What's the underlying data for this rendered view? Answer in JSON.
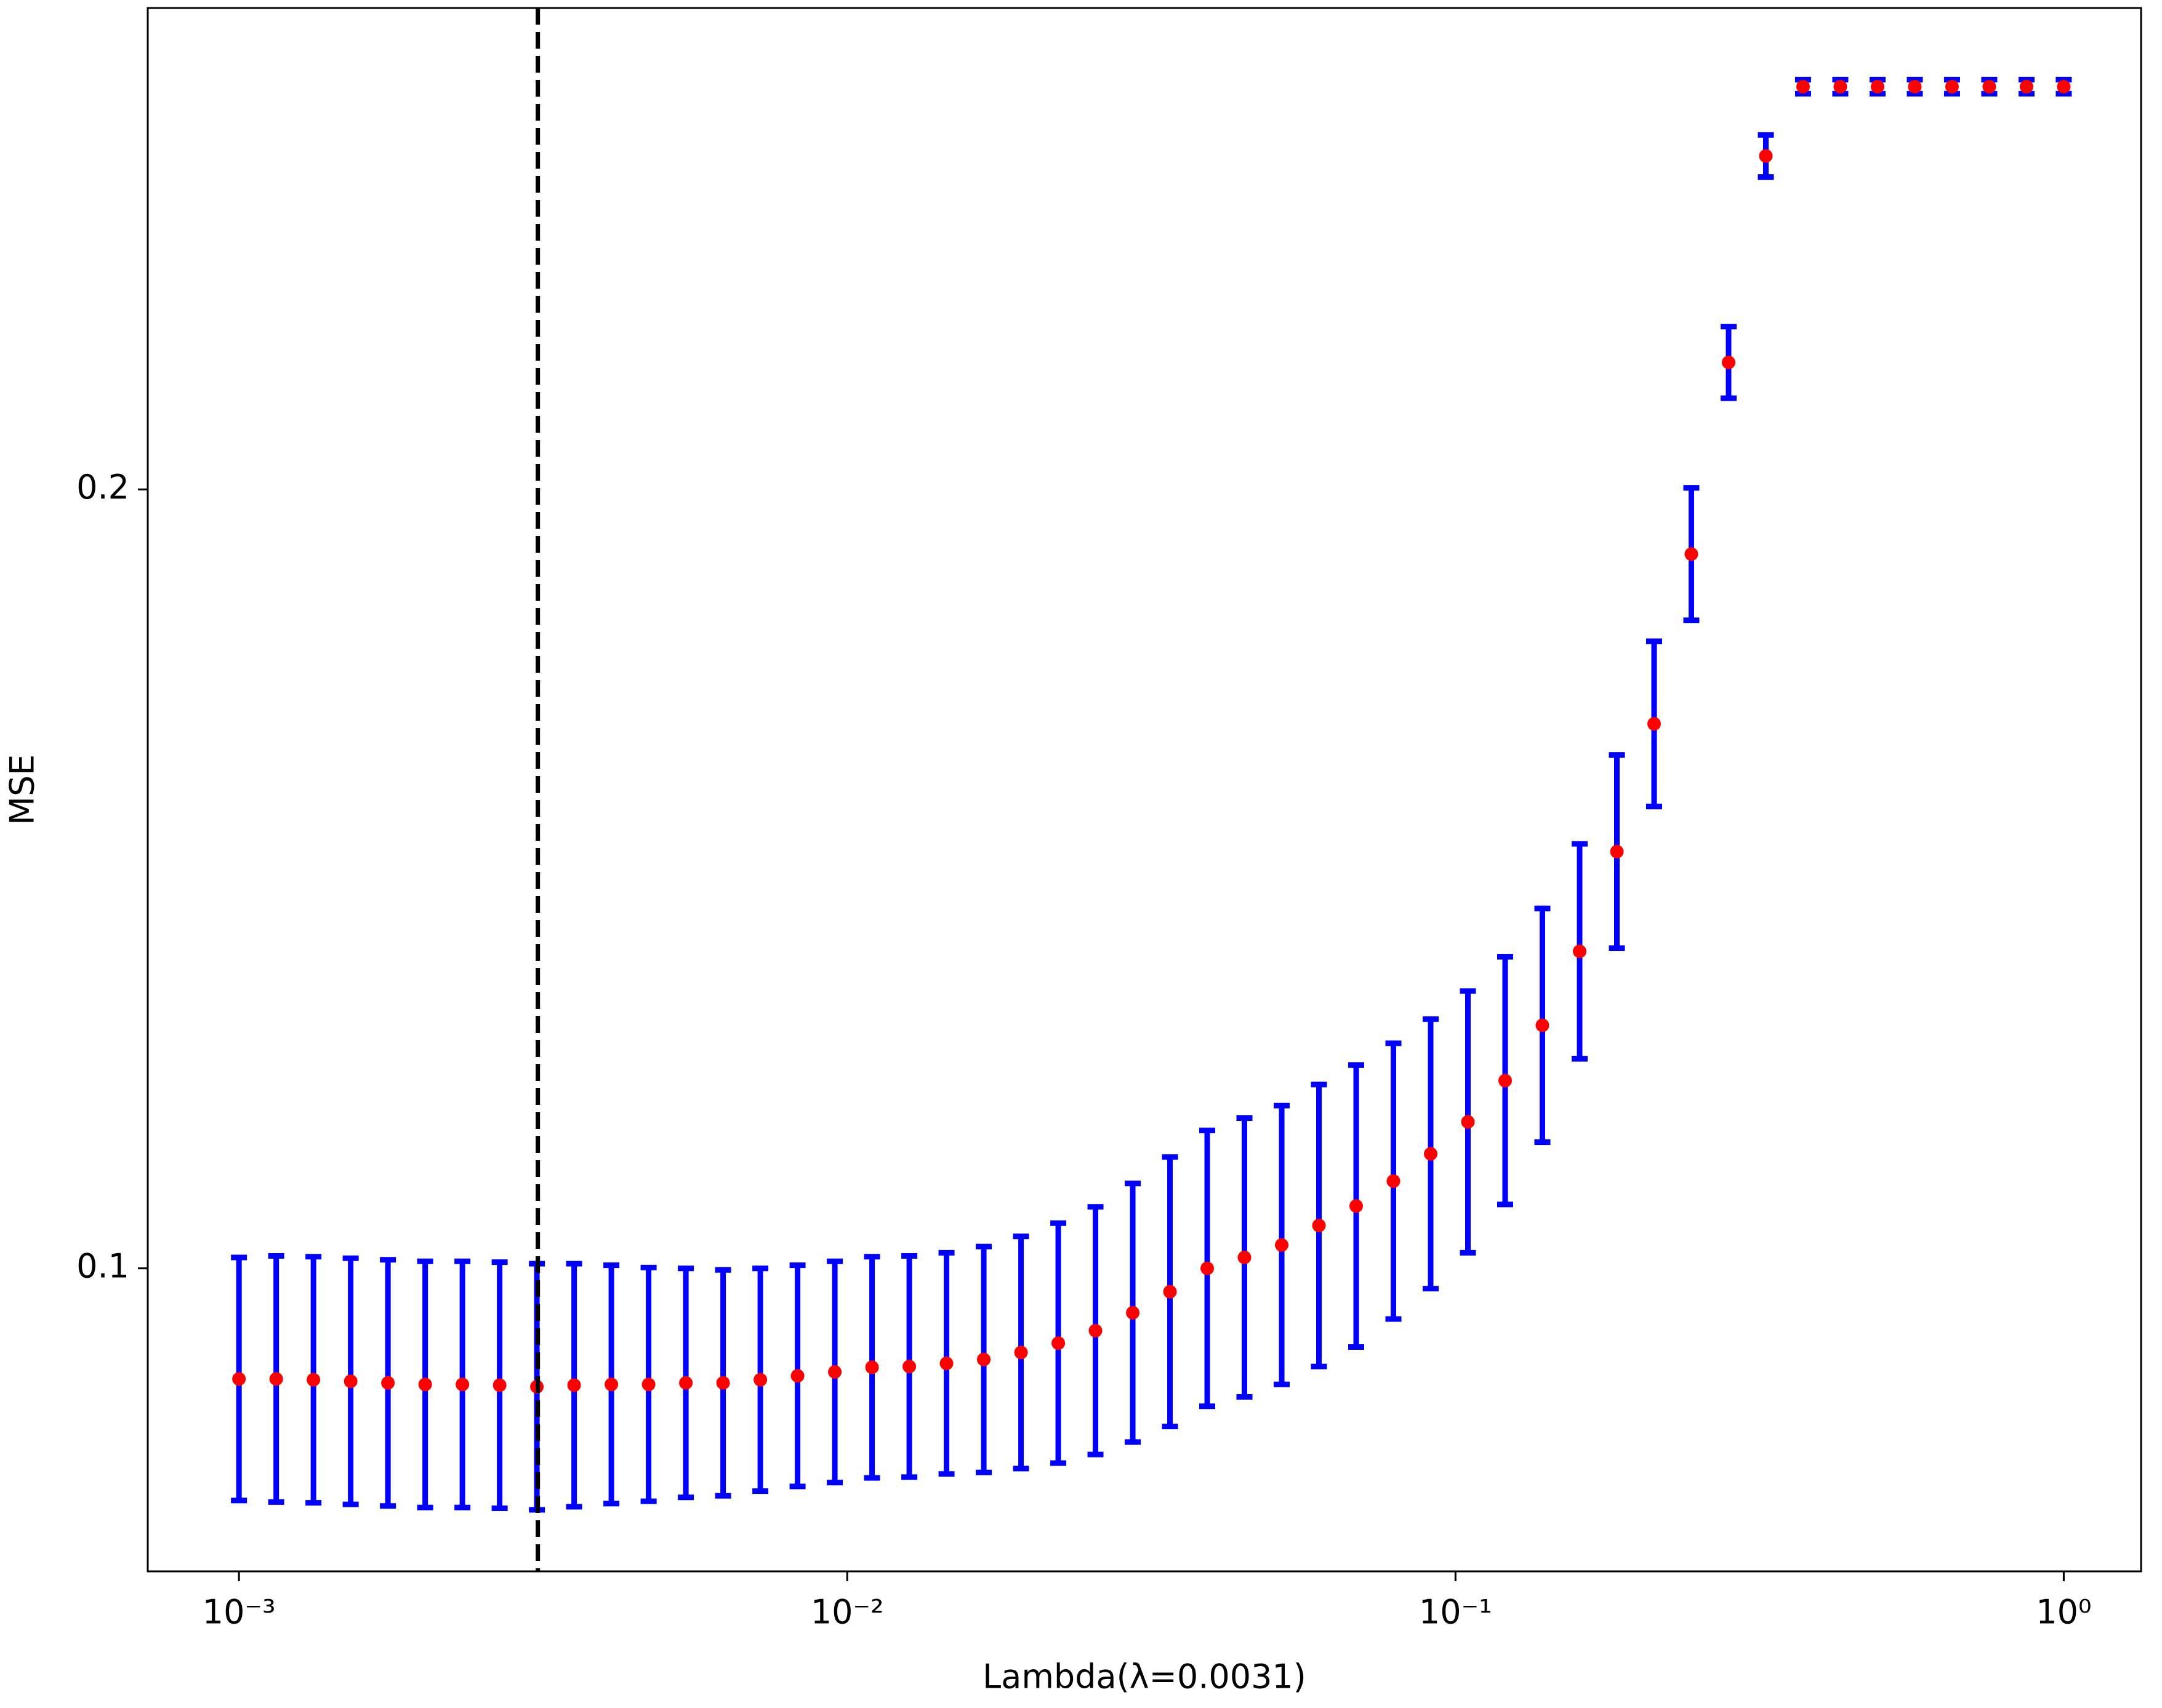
{
  "chart_data": {
    "type": "errorbar",
    "x_label": "Lambda(λ=0.0031)",
    "y_label": "MSE",
    "x": [
      0.001,
      0.0011514,
      0.0013257,
      0.0015264,
      0.0017575,
      0.0020236,
      0.00233,
      0.0026827,
      0.0030888,
      0.0035565,
      0.0040949,
      0.0047149,
      0.0054287,
      0.0062506,
      0.0071969,
      0.0082864,
      0.009541,
      0.010985,
      0.012649,
      0.014563,
      0.016768,
      0.019307,
      0.02223,
      0.025595,
      0.029471,
      0.033932,
      0.039069,
      0.044984,
      0.051795,
      0.059636,
      0.068665,
      0.07906,
      0.09103,
      0.10481,
      0.12068,
      0.13895,
      0.15999,
      0.18421,
      0.2121,
      0.24421,
      0.28118,
      0.32375,
      0.37276,
      0.42919,
      0.49417,
      0.56899,
      0.65513,
      0.75431,
      0.86851,
      1.0
    ],
    "values": [
      0.0858,
      0.0858,
      0.0857,
      0.0855,
      0.0853,
      0.0851,
      0.0851,
      0.085,
      0.0848,
      0.085,
      0.0851,
      0.0851,
      0.0853,
      0.0853,
      0.0857,
      0.0862,
      0.0867,
      0.0873,
      0.0874,
      0.0878,
      0.0883,
      0.0892,
      0.0904,
      0.092,
      0.0943,
      0.097,
      0.1,
      0.1014,
      0.103,
      0.1055,
      0.108,
      0.1112,
      0.1147,
      0.1188,
      0.1241,
      0.1312,
      0.1407,
      0.1535,
      0.1699,
      0.1917,
      0.2163,
      0.2428,
      0.2517,
      0.2517,
      0.2517,
      0.2517,
      0.2517,
      0.2517,
      0.2517,
      0.2517
    ],
    "errors": [
      0.0156,
      0.0158,
      0.0158,
      0.0158,
      0.0158,
      0.0158,
      0.0158,
      0.0158,
      0.0158,
      0.0156,
      0.0153,
      0.015,
      0.0147,
      0.0145,
      0.0143,
      0.0142,
      0.0142,
      0.0142,
      0.0142,
      0.0142,
      0.0145,
      0.0149,
      0.0154,
      0.0159,
      0.0166,
      0.0173,
      0.0177,
      0.0179,
      0.0179,
      0.0181,
      0.0181,
      0.0177,
      0.0173,
      0.0168,
      0.0159,
      0.015,
      0.0138,
      0.0124,
      0.0106,
      0.0085,
      0.0046,
      0.0027,
      0.0009,
      0.0009,
      0.0009,
      0.0009,
      0.0009,
      0.0009,
      0.0009,
      0.0009
    ],
    "errorbar_color": "#0000ff",
    "marker_color": "#ff0000",
    "vline_x": 0.0031,
    "vline_color": "#000000",
    "xscale": "log",
    "xlim": [
      0.000708,
      1.34
    ],
    "xticks": [
      {
        "value": 0.001,
        "label": "10⁻³"
      },
      {
        "value": 0.01,
        "label": "10⁻²"
      },
      {
        "value": 0.1,
        "label": "10⁻¹"
      },
      {
        "value": 1,
        "label": "10⁰"
      }
    ],
    "ylim": [
      0.0611,
      0.2618
    ],
    "yticks": [
      0.1,
      0.2
    ]
  }
}
